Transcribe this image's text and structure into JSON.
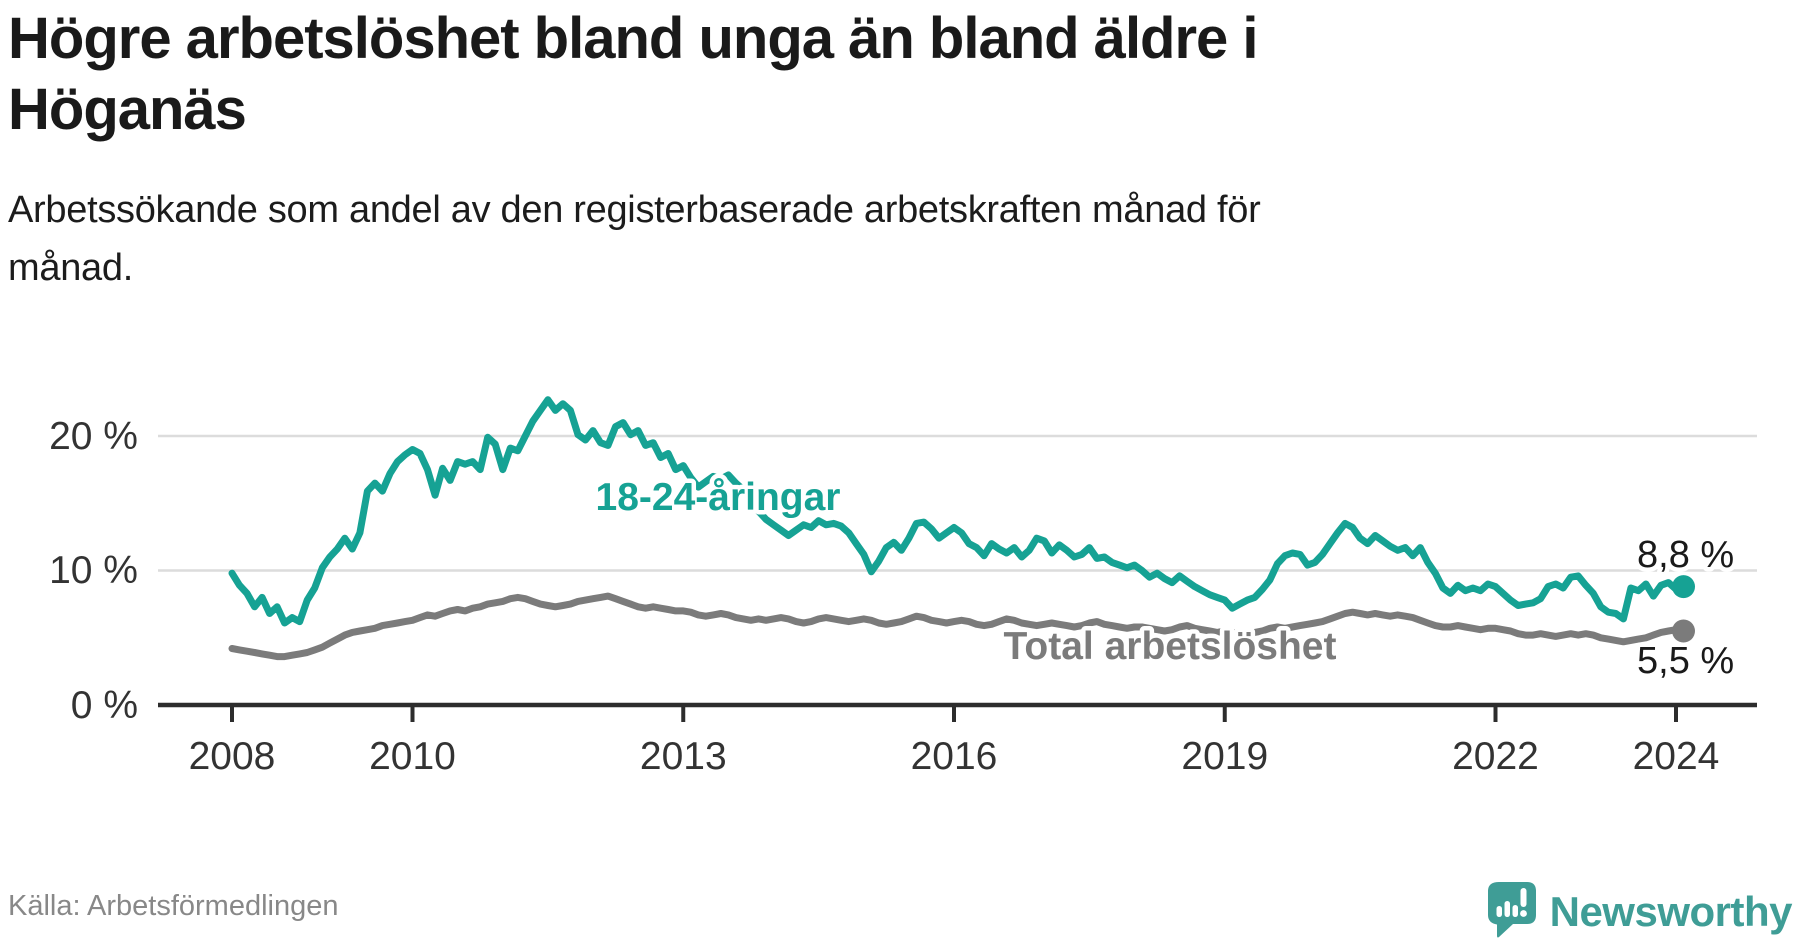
{
  "header": {
    "title_line1": "Högre arbetslöshet bland unga än bland äldre i",
    "title_line2": "Höganäs",
    "subtitle_line1": "Arbetssökande som andel av den registerbaserade arbetskraften månad för",
    "subtitle_line2": "månad."
  },
  "footer": {
    "source": "Källa: Arbetsförmedlingen",
    "brand": "Newsworthy",
    "brand_color": "#3f9d96"
  },
  "chart_data": {
    "type": "line",
    "title": "Högre arbetslöshet bland unga än bland äldre i Höganäs",
    "subtitle": "Arbetssökande som andel av den registerbaserade arbetskraften månad för månad.",
    "x_unit": "month",
    "x_start": "2008-01",
    "x_end": "2024-02",
    "x_ticks": [
      "2008",
      "2010",
      "2013",
      "2016",
      "2019",
      "2022",
      "2024"
    ],
    "x_tick_years": [
      2008,
      2010,
      2013,
      2016,
      2019,
      2022,
      2024
    ],
    "y_ticks": [
      "0 %",
      "10 %",
      "20 %"
    ],
    "ylabel": "",
    "xlabel": "",
    "ylim": [
      0,
      23
    ],
    "grid": "horizontal",
    "legend_position": "inline-labels",
    "series": [
      {
        "name": "18-24-åringar",
        "color": "#16a294",
        "end_label": "8,8 %",
        "end_value": 8.8,
        "values": [
          9.8,
          8.9,
          8.3,
          7.3,
          8.0,
          6.8,
          7.3,
          6.1,
          6.5,
          6.2,
          7.8,
          8.7,
          10.2,
          11.0,
          11.6,
          12.4,
          11.6,
          12.8,
          15.9,
          16.5,
          15.9,
          17.2,
          18.1,
          18.6,
          19.0,
          18.7,
          17.5,
          15.6,
          17.6,
          16.7,
          18.1,
          17.9,
          18.1,
          17.5,
          19.9,
          19.4,
          17.5,
          19.1,
          18.9,
          20.0,
          21.1,
          21.9,
          22.7,
          21.9,
          22.4,
          21.9,
          20.1,
          19.7,
          20.4,
          19.5,
          19.3,
          20.7,
          21.0,
          20.1,
          20.4,
          19.3,
          19.5,
          18.4,
          18.7,
          17.5,
          17.8,
          16.9,
          16.2,
          16.6,
          17.0,
          16.8,
          17.1,
          16.5,
          16.0,
          15.2,
          14.4,
          13.8,
          13.4,
          13.0,
          12.6,
          13.0,
          13.4,
          13.2,
          13.7,
          13.4,
          13.5,
          13.3,
          12.8,
          12.0,
          11.2,
          9.9,
          10.7,
          11.7,
          12.1,
          11.5,
          12.4,
          13.5,
          13.6,
          13.1,
          12.4,
          12.8,
          13.2,
          12.8,
          12.0,
          11.7,
          11.1,
          12.0,
          11.6,
          11.3,
          11.7,
          11.0,
          11.5,
          12.4,
          12.2,
          11.3,
          11.9,
          11.5,
          11.0,
          11.2,
          11.7,
          10.9,
          11.0,
          10.6,
          10.4,
          10.2,
          10.4,
          10.0,
          9.5,
          9.8,
          9.4,
          9.1,
          9.6,
          9.2,
          8.8,
          8.5,
          8.2,
          8.0,
          7.8,
          7.2,
          7.5,
          7.8,
          8.0,
          8.6,
          9.3,
          10.5,
          11.1,
          11.3,
          11.2,
          10.4,
          10.6,
          11.2,
          12.0,
          12.8,
          13.5,
          13.2,
          12.4,
          12.0,
          12.6,
          12.2,
          11.8,
          11.5,
          11.7,
          11.1,
          11.7,
          10.6,
          9.8,
          8.7,
          8.3,
          8.9,
          8.5,
          8.7,
          8.5,
          9.0,
          8.8,
          8.3,
          7.8,
          7.4,
          7.5,
          7.6,
          7.9,
          8.8,
          9.0,
          8.7,
          9.5,
          9.6,
          8.9,
          8.3,
          7.3,
          6.9,
          6.8,
          6.4,
          8.7,
          8.5,
          9.0,
          8.1,
          8.9,
          9.1,
          8.6,
          8.8
        ]
      },
      {
        "name": "Total arbetslöshet",
        "color": "#7b7b7b",
        "end_label": "5,5 %",
        "end_value": 5.5,
        "values": [
          4.2,
          4.1,
          4.0,
          3.9,
          3.8,
          3.7,
          3.6,
          3.6,
          3.7,
          3.8,
          3.9,
          4.1,
          4.3,
          4.6,
          4.9,
          5.2,
          5.4,
          5.5,
          5.6,
          5.7,
          5.9,
          6.0,
          6.1,
          6.2,
          6.3,
          6.5,
          6.7,
          6.6,
          6.8,
          7.0,
          7.1,
          7.0,
          7.2,
          7.3,
          7.5,
          7.6,
          7.7,
          7.9,
          8.0,
          7.9,
          7.7,
          7.5,
          7.4,
          7.3,
          7.4,
          7.5,
          7.7,
          7.8,
          7.9,
          8.0,
          8.1,
          7.9,
          7.7,
          7.5,
          7.3,
          7.2,
          7.3,
          7.2,
          7.1,
          7.0,
          7.0,
          6.9,
          6.7,
          6.6,
          6.7,
          6.8,
          6.7,
          6.5,
          6.4,
          6.3,
          6.4,
          6.3,
          6.4,
          6.5,
          6.4,
          6.2,
          6.1,
          6.2,
          6.4,
          6.5,
          6.4,
          6.3,
          6.2,
          6.3,
          6.4,
          6.3,
          6.1,
          6.0,
          6.1,
          6.2,
          6.4,
          6.6,
          6.5,
          6.3,
          6.2,
          6.1,
          6.2,
          6.3,
          6.2,
          6.0,
          5.9,
          6.0,
          6.2,
          6.4,
          6.3,
          6.1,
          6.0,
          5.9,
          6.0,
          6.1,
          6.0,
          5.9,
          5.8,
          5.9,
          6.1,
          6.2,
          6.0,
          5.9,
          5.8,
          5.7,
          5.8,
          5.8,
          5.7,
          5.6,
          5.5,
          5.6,
          5.8,
          5.9,
          5.7,
          5.6,
          5.5,
          5.4,
          5.5,
          5.4,
          5.3,
          5.3,
          5.4,
          5.5,
          5.7,
          5.8,
          5.7,
          5.8,
          5.9,
          6.0,
          6.1,
          6.2,
          6.4,
          6.6,
          6.8,
          6.9,
          6.8,
          6.7,
          6.8,
          6.7,
          6.6,
          6.7,
          6.6,
          6.5,
          6.3,
          6.1,
          5.9,
          5.8,
          5.8,
          5.9,
          5.8,
          5.7,
          5.6,
          5.7,
          5.7,
          5.6,
          5.5,
          5.3,
          5.2,
          5.2,
          5.3,
          5.2,
          5.1,
          5.2,
          5.3,
          5.2,
          5.3,
          5.2,
          5.0,
          4.9,
          4.8,
          4.7,
          4.8,
          4.9,
          5.0,
          5.2,
          5.4,
          5.5,
          5.6,
          5.5
        ]
      }
    ]
  }
}
